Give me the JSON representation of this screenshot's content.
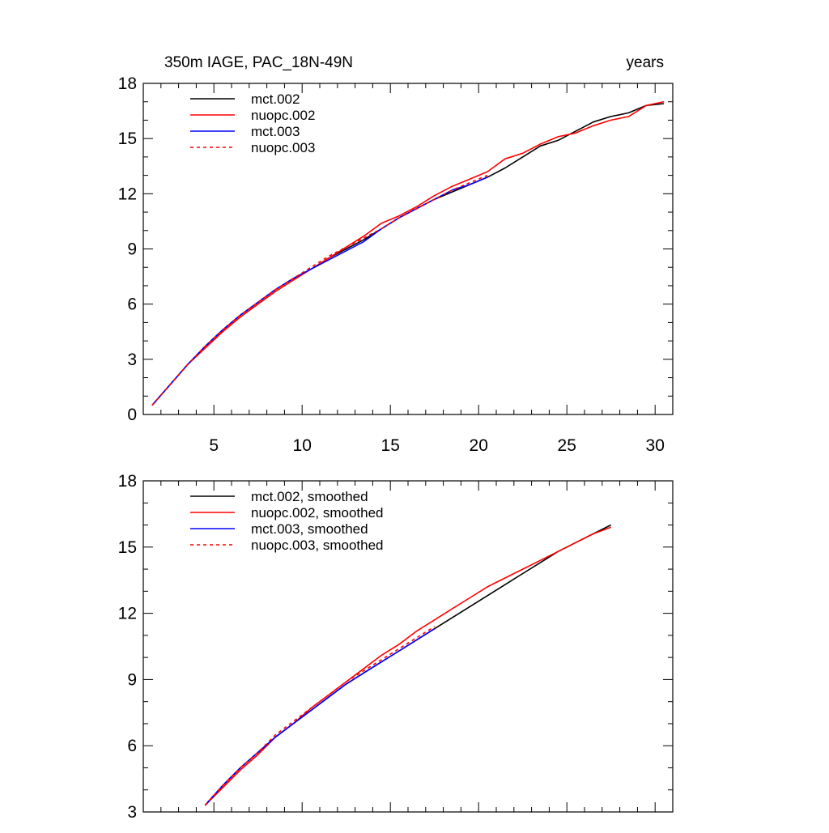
{
  "chart_data": [
    {
      "type": "line",
      "title_left": "350m IAGE, PAC_18N-49N",
      "title_right": "years",
      "xlabel": "",
      "ylabel": "",
      "xlim": [
        1,
        31
      ],
      "ylim": [
        0,
        18
      ],
      "xticks": [
        5,
        10,
        15,
        20,
        25,
        30
      ],
      "yticks": [
        0,
        3,
        6,
        9,
        12,
        15,
        18
      ],
      "legend_position": "top-left",
      "series": [
        {
          "name": "mct.002",
          "color": "#000000",
          "dash": "solid",
          "x": [
            1.5,
            2.5,
            3.5,
            4.5,
            5.5,
            6.5,
            7.5,
            8.5,
            9.5,
            10.5,
            11.5,
            12.5,
            13.5,
            14.5,
            15.5,
            16.5,
            17.5,
            18.5,
            19.5,
            20.5,
            21.5,
            22.5,
            23.5,
            24.5,
            25.5,
            26.5,
            27.5,
            28.5,
            29.5,
            30.5
          ],
          "y": [
            0.5,
            1.6,
            2.7,
            3.7,
            4.6,
            5.4,
            6.1,
            6.8,
            7.4,
            7.9,
            8.5,
            9.0,
            9.5,
            10.1,
            10.7,
            11.2,
            11.7,
            12.1,
            12.5,
            12.9,
            13.4,
            14.0,
            14.6,
            14.9,
            15.4,
            15.9,
            16.2,
            16.4,
            16.8,
            16.9
          ]
        },
        {
          "name": "nuopc.002",
          "color": "#ff0000",
          "dash": "solid",
          "x": [
            1.5,
            2.5,
            3.5,
            4.5,
            5.5,
            6.5,
            7.5,
            8.5,
            9.5,
            10.5,
            11.5,
            12.5,
            13.5,
            14.5,
            15.5,
            16.5,
            17.5,
            18.5,
            19.5,
            20.5,
            21.5,
            22.5,
            23.5,
            24.5,
            25.5,
            26.5,
            27.5,
            28.5,
            29.5,
            30.5
          ],
          "y": [
            0.5,
            1.6,
            2.7,
            3.6,
            4.5,
            5.3,
            6.0,
            6.7,
            7.3,
            7.9,
            8.5,
            9.1,
            9.7,
            10.4,
            10.8,
            11.3,
            11.9,
            12.4,
            12.8,
            13.2,
            13.9,
            14.2,
            14.7,
            15.1,
            15.3,
            15.7,
            16.0,
            16.2,
            16.8,
            17.0
          ]
        },
        {
          "name": "mct.003",
          "color": "#0000ff",
          "dash": "solid",
          "x": [
            1.5,
            2.5,
            3.5,
            4.5,
            5.5,
            6.5,
            7.5,
            8.5,
            9.5,
            10.5,
            11.5,
            12.5,
            13.5,
            14.5,
            15.5,
            16.5,
            17.5,
            18.5,
            19.5,
            20.5
          ],
          "y": [
            0.5,
            1.6,
            2.7,
            3.7,
            4.6,
            5.4,
            6.1,
            6.8,
            7.4,
            7.9,
            8.4,
            8.9,
            9.4,
            10.1,
            10.7,
            11.2,
            11.7,
            12.2,
            12.5,
            12.9
          ]
        },
        {
          "name": "nuopc.003",
          "color": "#ff0000",
          "dash": "dashed",
          "x": [
            1.5,
            2.5,
            3.5,
            4.5,
            5.5,
            6.5,
            7.5,
            8.5,
            9.5,
            10.5,
            11.5,
            12.5,
            13.5,
            14.5,
            15.5,
            16.5,
            17.5,
            18.5,
            19.5,
            20.5
          ],
          "y": [
            0.5,
            1.6,
            2.7,
            3.7,
            4.6,
            5.4,
            6.1,
            6.8,
            7.4,
            8.0,
            8.6,
            9.1,
            9.6,
            10.1,
            10.7,
            11.2,
            11.7,
            12.2,
            12.6,
            13.0
          ]
        }
      ]
    },
    {
      "type": "line",
      "xlabel": "",
      "ylabel": "",
      "xlim": [
        1,
        31
      ],
      "ylim": [
        3,
        18
      ],
      "xticks": [
        5,
        10,
        15,
        20,
        25,
        30
      ],
      "yticks": [
        3,
        6,
        9,
        12,
        15,
        18
      ],
      "legend_position": "top-left",
      "series": [
        {
          "name": "mct.002, smoothed",
          "color": "#000000",
          "dash": "solid",
          "x": [
            4.5,
            5.5,
            6.5,
            7.5,
            8.5,
            9.5,
            10.5,
            11.5,
            12.5,
            13.5,
            14.5,
            15.5,
            16.5,
            17.5,
            18.5,
            19.5,
            20.5,
            21.5,
            22.5,
            23.5,
            24.5,
            25.5,
            26.5,
            27.5
          ],
          "y": [
            3.3,
            4.2,
            5.0,
            5.7,
            6.4,
            7.0,
            7.6,
            8.2,
            8.8,
            9.3,
            9.8,
            10.3,
            10.8,
            11.3,
            11.8,
            12.3,
            12.8,
            13.3,
            13.8,
            14.3,
            14.8,
            15.2,
            15.6,
            16.0
          ]
        },
        {
          "name": "nuopc.002, smoothed",
          "color": "#ff0000",
          "dash": "solid",
          "x": [
            4.5,
            5.5,
            6.5,
            7.5,
            8.5,
            9.5,
            10.5,
            11.5,
            12.5,
            13.5,
            14.5,
            15.5,
            16.5,
            17.5,
            18.5,
            19.5,
            20.5,
            21.5,
            22.5,
            23.5,
            24.5,
            25.5,
            26.5,
            27.5
          ],
          "y": [
            3.3,
            4.1,
            4.9,
            5.6,
            6.4,
            7.0,
            7.7,
            8.3,
            8.9,
            9.5,
            10.1,
            10.6,
            11.2,
            11.7,
            12.2,
            12.7,
            13.2,
            13.6,
            14.0,
            14.4,
            14.8,
            15.2,
            15.6,
            15.9
          ]
        },
        {
          "name": "mct.003, smoothed",
          "color": "#0000ff",
          "dash": "solid",
          "x": [
            4.5,
            5.5,
            6.5,
            7.5,
            8.5,
            9.5,
            10.5,
            11.5,
            12.5,
            13.5,
            14.5,
            15.5,
            16.5,
            17.5
          ],
          "y": [
            3.3,
            4.2,
            5.0,
            5.7,
            6.4,
            7.0,
            7.6,
            8.2,
            8.8,
            9.3,
            9.8,
            10.3,
            10.8,
            11.3
          ]
        },
        {
          "name": "nuopc.003, smoothed",
          "color": "#ff0000",
          "dash": "dashed",
          "x": [
            4.5,
            5.5,
            6.5,
            7.5,
            8.5,
            9.5,
            10.5,
            11.5,
            12.5,
            13.5,
            14.5,
            15.5,
            16.5,
            17.5
          ],
          "y": [
            3.3,
            4.2,
            5.0,
            5.7,
            6.5,
            7.1,
            7.7,
            8.3,
            8.9,
            9.4,
            9.9,
            10.4,
            10.9,
            11.4
          ]
        }
      ]
    }
  ]
}
